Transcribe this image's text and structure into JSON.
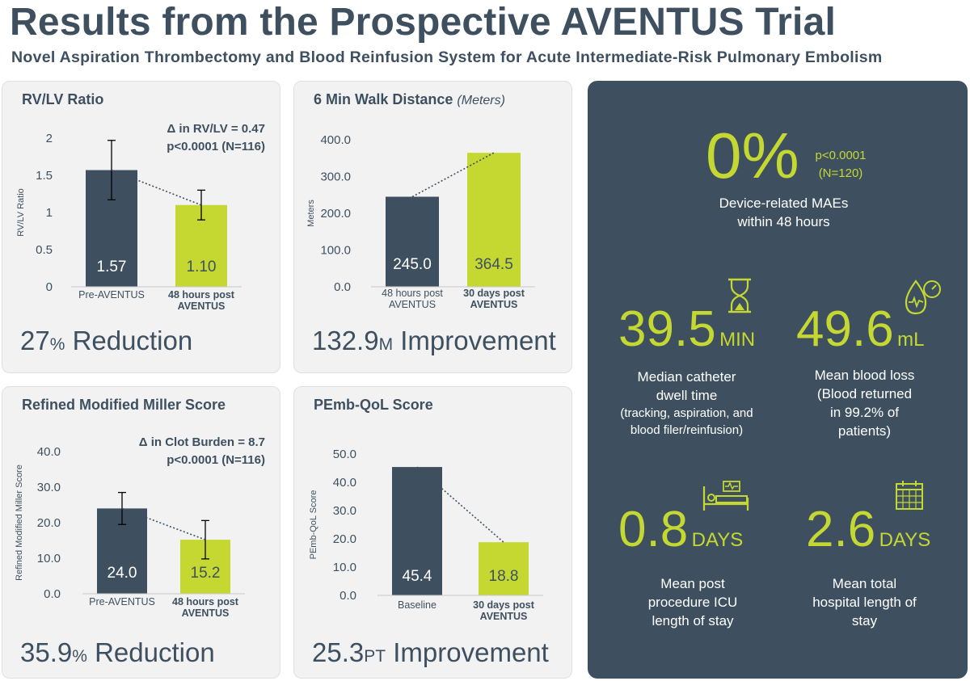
{
  "header": {
    "title": "Results from the Prospective AVENTUS Trial",
    "subtitle": "Novel Aspiration Thrombectomy and Blood Reinfusion System for Acute Intermediate-Risk Pulmonary Embolism"
  },
  "colors": {
    "dark_bar": "#3e5060",
    "light_bar": "#c5d832",
    "panel_bg": "#f2f2f2",
    "accent": "#c5d832"
  },
  "panels": {
    "rvlv": {
      "title": "RV/LV Ratio",
      "stat_line1": "Δ in RV/LV = 0.47",
      "stat_line2": "p<0.0001 (N=116)",
      "big_value": "27",
      "big_unit": "%",
      "big_text": " Reduction"
    },
    "walk": {
      "title": "6 Min Walk Distance",
      "title_unit": "(Meters)",
      "big_value": "132.9",
      "big_unit": "M",
      "big_text": " Improvement"
    },
    "miller": {
      "title": "Refined Modified Miller Score",
      "stat_line1": "Δ in Clot Burden = 8.7",
      "stat_line2": "p<0.0001 (N=116)",
      "big_value": "35.9",
      "big_unit": "%",
      "big_text": " Reduction"
    },
    "qol": {
      "title": "PEmb-QoL Score",
      "big_value": "25.3",
      "big_unit": "PT",
      "big_text": " Improvement"
    }
  },
  "chart_data": [
    {
      "type": "bar",
      "id": "rvlv",
      "ylabel": "RV/LV Ratio",
      "categories": [
        [
          "Pre-AVENTUS"
        ],
        [
          "48 hours post",
          "AVENTUS"
        ]
      ],
      "values": [
        1.57,
        1.1
      ],
      "value_labels": [
        "1.57",
        "1.10"
      ],
      "error_bars": [
        [
          1.17,
          1.97
        ],
        [
          0.9,
          1.3
        ]
      ],
      "ylim": [
        0,
        2
      ],
      "yticks": [
        "0",
        "0.5",
        "1",
        "1.5",
        "2"
      ],
      "ytick_values": [
        0,
        0.5,
        1,
        1.5,
        2
      ],
      "bold_category": [
        false,
        true
      ]
    },
    {
      "type": "bar",
      "id": "walk",
      "ylabel": "Meters",
      "categories": [
        [
          "48 hours post",
          "AVENTUS"
        ],
        [
          "30 days post",
          "AVENTUS"
        ]
      ],
      "values": [
        245.0,
        364.5
      ],
      "value_labels": [
        "245.0",
        "364.5"
      ],
      "error_bars": null,
      "ylim": [
        0,
        400
      ],
      "yticks": [
        "0.0",
        "100.0",
        "200.0",
        "300.0",
        "400.0"
      ],
      "ytick_values": [
        0,
        100,
        200,
        300,
        400
      ],
      "bold_category": [
        false,
        true
      ]
    },
    {
      "type": "bar",
      "id": "miller",
      "ylabel": "Refined Modified Miller Score",
      "categories": [
        [
          "Pre-AVENTUS"
        ],
        [
          "48 hours post",
          "AVENTUS"
        ]
      ],
      "values": [
        24.0,
        15.2
      ],
      "value_labels": [
        "24.0",
        "15.2"
      ],
      "error_bars": [
        [
          19.5,
          28.5
        ],
        [
          9.8,
          20.6
        ]
      ],
      "ylim": [
        0,
        40
      ],
      "yticks": [
        "0.0",
        "10.0",
        "20.0",
        "30.0",
        "40.0"
      ],
      "ytick_values": [
        0,
        10,
        20,
        30,
        40
      ],
      "bold_category": [
        false,
        true
      ]
    },
    {
      "type": "bar",
      "id": "qol",
      "ylabel": "PEmb-QoL Score",
      "categories": [
        [
          "Baseline"
        ],
        [
          "30 days post",
          "AVENTUS"
        ]
      ],
      "values": [
        45.4,
        18.8
      ],
      "value_labels": [
        "45.4",
        "18.8"
      ],
      "error_bars": null,
      "ylim": [
        0,
        50
      ],
      "yticks": [
        "0.0",
        "10.0",
        "20.0",
        "30.0",
        "40.0",
        "50.0"
      ],
      "ytick_values": [
        0,
        10,
        20,
        30,
        40,
        50
      ],
      "bold_category": [
        false,
        true
      ]
    }
  ],
  "summary": {
    "mae": {
      "value": "0%",
      "p_line1": "p<0.0001",
      "p_line2": "(N=120)",
      "desc_line1": "Device-related MAEs",
      "desc_line2": "within 48 hours"
    },
    "dwell": {
      "value": "39.5",
      "unit": "MIN",
      "icon": "hourglass-icon",
      "desc_line1": "Median catheter",
      "desc_line2": "dwell time",
      "sub_line1": "(tracking, aspiration, and",
      "sub_line2": "blood filer/reinfusion)"
    },
    "blood": {
      "value": "49.6",
      "unit": "mL",
      "icon": "blood-drop-gauge-icon",
      "desc_line1": "Mean blood loss",
      "desc_line2": "(Blood returned",
      "desc_line3": "in 99.2% of",
      "desc_line4": "patients)"
    },
    "icu": {
      "value": "0.8",
      "unit": "DAYS",
      "icon": "hospital-bed-icon",
      "desc_line1": "Mean post",
      "desc_line2": "procedure ICU",
      "desc_line3": "length of stay"
    },
    "hospital": {
      "value": "2.6",
      "unit": "DAYS",
      "icon": "calendar-icon",
      "desc_line1": "Mean total",
      "desc_line2": "hospital length of",
      "desc_line3": "stay"
    }
  }
}
